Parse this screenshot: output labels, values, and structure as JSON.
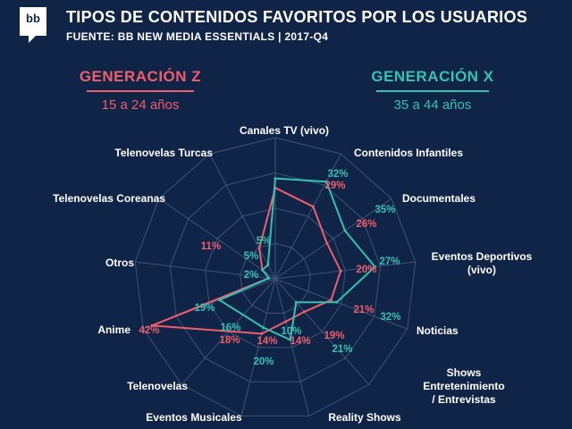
{
  "header": {
    "logo_text": "bb",
    "title": "TIPOS DE CONTENIDOS FAVORITOS POR LOS USUARIOS",
    "subtitle": "FUENTE: BB NEW MEDIA ESSENTIALS | 2017-Q4"
  },
  "legend": {
    "gen_z": {
      "name": "GENERACIÓN Z",
      "age": "15 a 24 años"
    },
    "gen_x": {
      "name": "GENERACIÓN X",
      "age": "35 a 44 años"
    }
  },
  "colors": {
    "background": "#0f2447",
    "gen_z": "#ef5f6b",
    "gen_x": "#35c1b4",
    "grid": "#3d5478"
  },
  "chart_data": {
    "type": "radar",
    "title": "TIPOS DE CONTENIDOS FAVORITOS POR LOS USUARIOS",
    "categories": [
      "Canales TV (vivo)",
      "Contenidos Infantiles",
      "Documentales",
      "Eventos Deportivos (vivo)",
      "Noticias",
      "Shows Entretenimiento/ Entrevistas",
      "Reality Shows",
      "Eventos Musicales",
      "Telenovelas",
      "Anime",
      "Otros",
      "Telenovelas Coreanas",
      "Telenovelas Turcas"
    ],
    "series": [
      {
        "name": "GENERACIÓN Z",
        "values": [
          29,
          26,
          20,
          21,
          19,
          14,
          14,
          18,
          null,
          42,
          2,
          5,
          11
        ]
      },
      {
        "name": "GENERACIÓN X",
        "values": [
          32,
          35,
          27,
          32,
          21,
          10,
          20,
          16,
          null,
          19,
          2,
          5,
          5
        ]
      }
    ],
    "value_labels": {
      "gen_z": [
        "29%",
        "26%",
        "20%",
        "21%",
        "19%",
        "14%",
        "14%",
        "18%",
        "",
        "42%",
        "2%",
        "5%",
        "11%"
      ],
      "gen_x": [
        "32%",
        "35%",
        "27%",
        "32%",
        "21%",
        "10%",
        "20%",
        "16%",
        "",
        "19%",
        "2%",
        "5%",
        "5%"
      ]
    },
    "rmax": 45,
    "grid": true
  }
}
